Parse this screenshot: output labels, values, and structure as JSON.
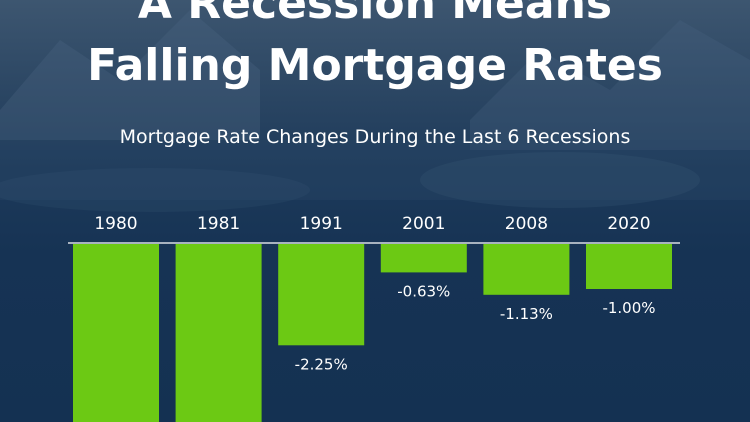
{
  "header": {
    "title_line1": "A Recession Means",
    "title_line2": "Falling Mortgage Rates"
  },
  "colors": {
    "background": "#143152",
    "bar": "#6cc914",
    "text": "#ffffff",
    "baseline": "#ffffff"
  },
  "chart_data": {
    "type": "bar",
    "title": "Mortgage Rate Changes During the Last 6 Recessions",
    "categories": [
      "1980",
      "1981",
      "1991",
      "2001",
      "2008",
      "2020"
    ],
    "values": [
      null,
      null,
      -2.25,
      -0.63,
      -1.13,
      -1.0
    ],
    "data_labels": [
      "",
      "",
      "-2.25%",
      "-0.63%",
      "-1.13%",
      "-1.00%"
    ],
    "unit": "%",
    "grid": false,
    "legend": "none"
  }
}
